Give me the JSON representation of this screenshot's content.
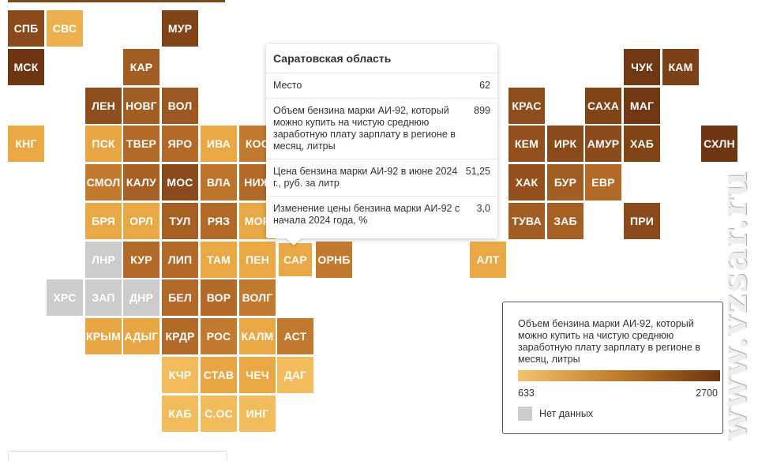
{
  "tiles": [
    {
      "label": "СПБ",
      "r": 0,
      "c": 0,
      "color": "#8a4a1c"
    },
    {
      "label": "СВС",
      "r": 0,
      "c": 1,
      "color": "#edb04e"
    },
    {
      "label": "МУР",
      "r": 0,
      "c": 4,
      "color": "#804417"
    },
    {
      "label": "МСК",
      "r": 1,
      "c": 0,
      "color": "#6e3612"
    },
    {
      "label": "КАР",
      "r": 1,
      "c": 3,
      "color": "#a15d22"
    },
    {
      "label": "ЧУК",
      "r": 1,
      "c": 16,
      "color": "#6f3813"
    },
    {
      "label": "КАМ",
      "r": 1,
      "c": 17,
      "color": "#7c4117"
    },
    {
      "label": "ЛЕН",
      "r": 2,
      "c": 2,
      "color": "#8e4d1c"
    },
    {
      "label": "НОВГ",
      "r": 2,
      "c": 3,
      "color": "#a15d22"
    },
    {
      "label": "ВОЛ",
      "r": 2,
      "c": 4,
      "color": "#9c5820"
    },
    {
      "label": "КРАС",
      "r": 2,
      "c": 13,
      "color": "#8e4d1c"
    },
    {
      "label": "САХА",
      "r": 2,
      "c": 15,
      "color": "#804417"
    },
    {
      "label": "МАГ",
      "r": 2,
      "c": 16,
      "color": "#6f3813"
    },
    {
      "label": "КНГ",
      "r": 3,
      "c": 0,
      "color": "#eaa845"
    },
    {
      "label": "ПСК",
      "r": 3,
      "c": 2,
      "color": "#e8a543"
    },
    {
      "label": "ТВЕР",
      "r": 3,
      "c": 3,
      "color": "#b36a28"
    },
    {
      "label": "ЯРО",
      "r": 3,
      "c": 4,
      "color": "#b36a28"
    },
    {
      "label": "ИВА",
      "r": 3,
      "c": 5,
      "color": "#eaa845"
    },
    {
      "label": "КОС",
      "r": 3,
      "c": 6,
      "color": "#c27a2e"
    },
    {
      "label": "КЕМ",
      "r": 3,
      "c": 13,
      "color": "#934f1d"
    },
    {
      "label": "ИРК",
      "r": 3,
      "c": 14,
      "color": "#8a4a1c"
    },
    {
      "label": "АМУР",
      "r": 3,
      "c": 15,
      "color": "#8a4a1c"
    },
    {
      "label": "ХАБ",
      "r": 3,
      "c": 16,
      "color": "#804417"
    },
    {
      "label": "СХЛН",
      "r": 3,
      "c": 18,
      "color": "#6e3612"
    },
    {
      "label": "СМОЛ",
      "r": 4,
      "c": 2,
      "color": "#c27a2e"
    },
    {
      "label": "КАЛУ",
      "r": 4,
      "c": 3,
      "color": "#a66024"
    },
    {
      "label": "МОС",
      "r": 4,
      "c": 4,
      "color": "#8a4a1c"
    },
    {
      "label": "ВЛА",
      "r": 4,
      "c": 5,
      "color": "#bd752c"
    },
    {
      "label": "НИЖ",
      "r": 4,
      "c": 6,
      "color": "#b36a28"
    },
    {
      "label": "ХАК",
      "r": 4,
      "c": 13,
      "color": "#934f1d"
    },
    {
      "label": "БУР",
      "r": 4,
      "c": 14,
      "color": "#a15d22"
    },
    {
      "label": "ЕВР",
      "r": 4,
      "c": 15,
      "color": "#b36a28"
    },
    {
      "label": "БРЯ",
      "r": 5,
      "c": 2,
      "color": "#eaa845"
    },
    {
      "label": "ОРЛ",
      "r": 5,
      "c": 3,
      "color": "#eaa845"
    },
    {
      "label": "ТУЛ",
      "r": 5,
      "c": 4,
      "color": "#a66024"
    },
    {
      "label": "РЯЗ",
      "r": 5,
      "c": 5,
      "color": "#b36a28"
    },
    {
      "label": "МОР",
      "r": 5,
      "c": 6,
      "color": "#eaa845"
    },
    {
      "label": "ТУВА",
      "r": 5,
      "c": 13,
      "color": "#a15d22"
    },
    {
      "label": "ЗАБ",
      "r": 5,
      "c": 14,
      "color": "#a66024"
    },
    {
      "label": "ПРИ",
      "r": 5,
      "c": 16,
      "color": "#8a4a1c"
    },
    {
      "label": "ЛНР",
      "r": 6,
      "c": 2,
      "color": "#cccccc"
    },
    {
      "label": "КУР",
      "r": 6,
      "c": 3,
      "color": "#b36a28"
    },
    {
      "label": "ЛИП",
      "r": 6,
      "c": 4,
      "color": "#b36a28"
    },
    {
      "label": "ТАМ",
      "r": 6,
      "c": 5,
      "color": "#eaa845"
    },
    {
      "label": "ПЕН",
      "r": 6,
      "c": 6,
      "color": "#eaa845"
    },
    {
      "label": "САР",
      "r": 6,
      "c": 7,
      "color": "#eaa845",
      "selected": true
    },
    {
      "label": "ОРНБ",
      "r": 6,
      "c": 8,
      "color": "#c27a2e"
    },
    {
      "label": "АЛТ",
      "r": 6,
      "c": 12,
      "color": "#eaa845"
    },
    {
      "label": "ХРС",
      "r": 7,
      "c": 1,
      "color": "#cccccc"
    },
    {
      "label": "ЗАП",
      "r": 7,
      "c": 2,
      "color": "#cccccc"
    },
    {
      "label": "ДНР",
      "r": 7,
      "c": 3,
      "color": "#cccccc"
    },
    {
      "label": "БЕЛ",
      "r": 7,
      "c": 4,
      "color": "#b36a28"
    },
    {
      "label": "ВОР",
      "r": 7,
      "c": 5,
      "color": "#b36a28"
    },
    {
      "label": "ВОЛГ",
      "r": 7,
      "c": 6,
      "color": "#c27a2e"
    },
    {
      "label": "КРЫМ",
      "r": 8,
      "c": 2,
      "color": "#e8a543"
    },
    {
      "label": "АДЫГ",
      "r": 8,
      "c": 3,
      "color": "#e8a543"
    },
    {
      "label": "КРДР",
      "r": 8,
      "c": 4,
      "color": "#b36a28"
    },
    {
      "label": "РОС",
      "r": 8,
      "c": 5,
      "color": "#c27a2e"
    },
    {
      "label": "КАЛМ",
      "r": 8,
      "c": 6,
      "color": "#eaa845"
    },
    {
      "label": "АСТ",
      "r": 8,
      "c": 7,
      "color": "#c27a2e"
    },
    {
      "label": "КЧР",
      "r": 9,
      "c": 4,
      "color": "#f2bc5c"
    },
    {
      "label": "СТАВ",
      "r": 9,
      "c": 5,
      "color": "#e8a543"
    },
    {
      "label": "ЧЕЧ",
      "r": 9,
      "c": 6,
      "color": "#eaa845"
    },
    {
      "label": "ДАГ",
      "r": 9,
      "c": 7,
      "color": "#f2bc5c"
    },
    {
      "label": "КАБ",
      "r": 10,
      "c": 4,
      "color": "#f2bc5c"
    },
    {
      "label": "С.ОС",
      "r": 10,
      "c": 5,
      "color": "#f2bc5c"
    },
    {
      "label": "ИНГ",
      "r": 10,
      "c": 6,
      "color": "#f2bc5c"
    }
  ],
  "tooltip": {
    "title": "Саратовская область",
    "rows": [
      {
        "label": "Место",
        "value": "62"
      },
      {
        "label": "Объем бензина марки АИ-92, который можно купить на чистую среднюю заработную плату зарплату в регионе в месяц, литры",
        "value": "899"
      },
      {
        "label": "Цена бензина марки АИ-92 в июне 2024 г., руб. за литр",
        "value": "51,25"
      },
      {
        "label": "Изменение цены бензина марки АИ-92 с начала 2024 года, %",
        "value": "3,0"
      }
    ]
  },
  "legend": {
    "title": "Объем бензина марки АИ-92, который можно купить на чистую среднюю заработную плату зарплату в регионе в месяц, литры",
    "min": "633",
    "max": "2700",
    "no_data": "Нет данных",
    "colors": {
      "low": "#f2c46d",
      "high": "#6b3410",
      "no_data": "#cccccc"
    }
  },
  "watermark": "www.vzsar.ru"
}
